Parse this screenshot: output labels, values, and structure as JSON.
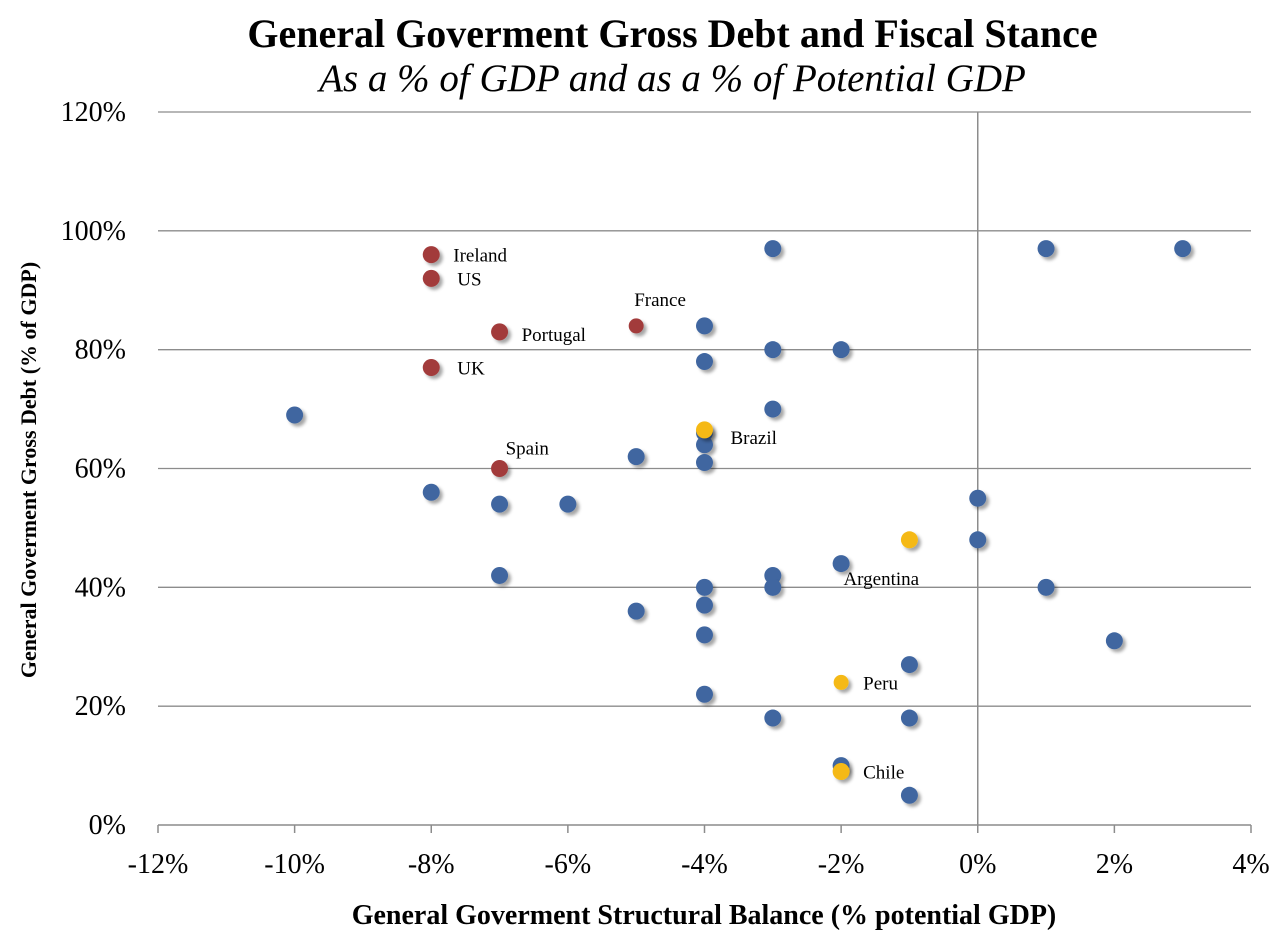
{
  "chart_data": {
    "type": "scatter",
    "title": "General Goverment Gross Debt and Fiscal Stance",
    "subtitle": "As a % of GDP and as a % of Potential GDP",
    "xlabel": "General Goverment Structural Balance (% potential GDP)",
    "ylabel": "General Goverment Gross Debt (% of GDP)",
    "xlim": [
      -12,
      4
    ],
    "ylim": [
      0,
      120
    ],
    "x_ticks": [
      -12,
      -10,
      -8,
      -6,
      -4,
      -2,
      0,
      2,
      4
    ],
    "y_ticks": [
      0,
      20,
      40,
      60,
      80,
      100,
      120
    ],
    "x_tick_labels": [
      "-12%",
      "-10%",
      "-8%",
      "-6%",
      "-4%",
      "-2%",
      "0%",
      "2%",
      "4%"
    ],
    "y_tick_labels": [
      "0%",
      "20%",
      "40%",
      "60%",
      "80%",
      "100%",
      "120%"
    ],
    "grid": "horizontal",
    "legend": "none",
    "colors": {
      "other": "#3f66a0",
      "advanced": "#a23b3b",
      "latam": "#f5b914"
    },
    "series": [
      {
        "group": "advanced",
        "points": [
          {
            "x": -8,
            "y": 96,
            "label": "Ireland"
          },
          {
            "x": -8,
            "y": 92,
            "label": "US"
          },
          {
            "x": -5,
            "y": 84,
            "label": "France"
          },
          {
            "x": -7,
            "y": 83,
            "label": "Portugal"
          },
          {
            "x": -8,
            "y": 77,
            "label": "UK"
          },
          {
            "x": -7,
            "y": 60,
            "label": "Spain"
          }
        ]
      },
      {
        "group": "latam",
        "points": [
          {
            "x": -4,
            "y": 66.5,
            "label": "Brazil"
          },
          {
            "x": -1,
            "y": 48,
            "label": "Argentina"
          },
          {
            "x": -2,
            "y": 24,
            "label": "Peru"
          },
          {
            "x": -2,
            "y": 9,
            "label": "Chile"
          }
        ]
      },
      {
        "group": "other",
        "points": [
          {
            "x": -3,
            "y": 97
          },
          {
            "x": 1,
            "y": 97
          },
          {
            "x": 3,
            "y": 97
          },
          {
            "x": -4,
            "y": 84
          },
          {
            "x": -3,
            "y": 80
          },
          {
            "x": -2,
            "y": 80
          },
          {
            "x": -4,
            "y": 78
          },
          {
            "x": -10,
            "y": 69
          },
          {
            "x": -3,
            "y": 70
          },
          {
            "x": -4,
            "y": 66
          },
          {
            "x": -4,
            "y": 64
          },
          {
            "x": -5,
            "y": 62
          },
          {
            "x": -4,
            "y": 61
          },
          {
            "x": -8,
            "y": 56
          },
          {
            "x": -7,
            "y": 54
          },
          {
            "x": -6,
            "y": 54
          },
          {
            "x": 0,
            "y": 55
          },
          {
            "x": 0,
            "y": 48
          },
          {
            "x": -2,
            "y": 44
          },
          {
            "x": -7,
            "y": 42
          },
          {
            "x": -3,
            "y": 42
          },
          {
            "x": -4,
            "y": 40
          },
          {
            "x": -3,
            "y": 40
          },
          {
            "x": 1,
            "y": 40
          },
          {
            "x": -4,
            "y": 37
          },
          {
            "x": -5,
            "y": 36
          },
          {
            "x": -4,
            "y": 32
          },
          {
            "x": 2,
            "y": 31
          },
          {
            "x": -1,
            "y": 27
          },
          {
            "x": -4,
            "y": 22
          },
          {
            "x": -3,
            "y": 18
          },
          {
            "x": -1,
            "y": 18
          },
          {
            "x": -2,
            "y": 10
          },
          {
            "x": -1,
            "y": 5
          }
        ]
      }
    ]
  }
}
